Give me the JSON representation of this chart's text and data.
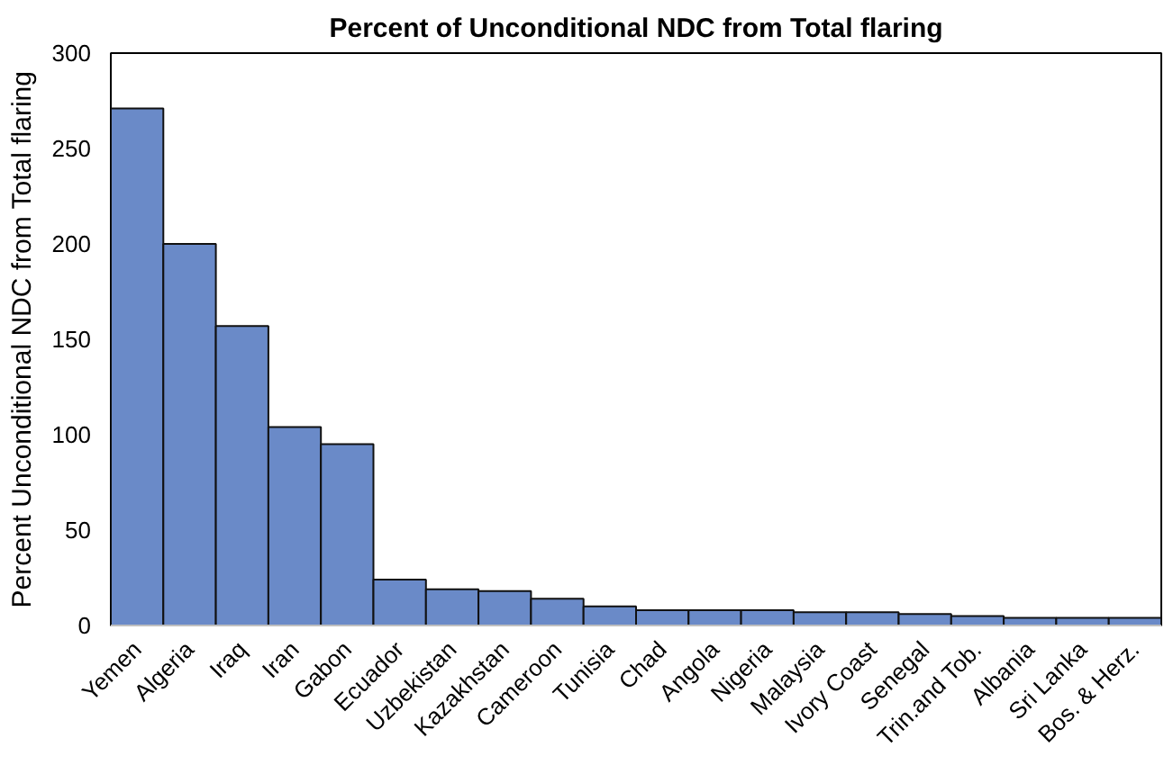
{
  "chart_data": {
    "type": "bar",
    "title": "Percent of Unconditional NDC from Total flaring",
    "ylabel": "Percent Unconditional NDC from Total flaring",
    "categories": [
      "Yemen",
      "Algeria",
      "Iraq",
      "Iran",
      "Gabon",
      "Ecuador",
      "Uzbekistan",
      "Kazakhstan",
      "Cameroon",
      "Tunisia",
      "Chad",
      "Angola",
      "Nigeria",
      "Malaysia",
      "Ivory Coast",
      "Senegal",
      "Trin.and Tob.",
      "Albania",
      "Sri Lanka",
      "Bos. & Herz."
    ],
    "values": [
      271,
      200,
      157,
      104,
      95,
      24,
      19,
      18,
      14,
      10,
      8,
      8,
      8,
      7,
      7,
      6,
      5,
      4,
      4,
      4
    ],
    "color": "#6a8ac8",
    "ylim": [
      0,
      300
    ],
    "yticks": [
      0,
      50,
      100,
      150,
      200,
      250,
      300
    ],
    "grid": false
  }
}
